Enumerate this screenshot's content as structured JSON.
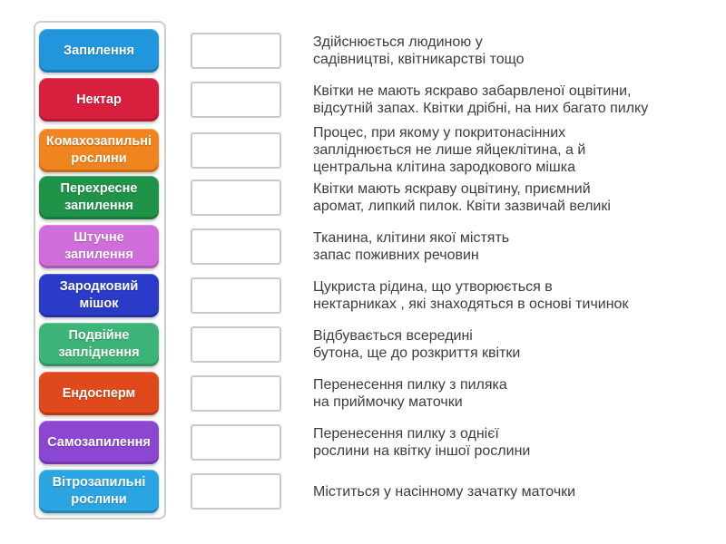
{
  "activity": {
    "type": "match-up",
    "language": "uk"
  },
  "colors": {
    "panel_border": "#cccccc",
    "dropbox_border": "#c9c9c9",
    "definition_text": "#3d3d3d",
    "tile_text": "#ffffff",
    "background": "#ffffff"
  },
  "rows": [
    {
      "term": "Запилення",
      "color": "#2196dd",
      "definition": "Здійснюється людиною у\nсадівництві, квітникарстві тощо"
    },
    {
      "term": "Нектар",
      "color": "#d8203e",
      "definition": "Квітки не мають яскраво забарвленої оцвітини,\nвідсутній запах. Квітки дрібні, на них багато пилку"
    },
    {
      "term": "Комахозапильні рослини",
      "color": "#f0841f",
      "definition": "Процес, при якому у покритонасінних\nзапліднюється не лише яйцеклітина, а й\nцентральна клітина зародкового мішка"
    },
    {
      "term": "Перехресне запилення",
      "color": "#1f9347",
      "definition": "Квітки мають яскраву оцвітину, приємний\nаромат, липкий пилок. Квіти зазвичай великі"
    },
    {
      "term": "Штучне запилення",
      "color": "#cf6edb",
      "definition": "Тканина, клітини якої містять\nзапас поживних речовин"
    },
    {
      "term": "Зародковий мішок",
      "color": "#2b3bc9",
      "definition": "Цукриста рідина, що утворюється в\nнектарниках , які знаходяться в основі тичинок"
    },
    {
      "term": "Подвійне запліднення",
      "color": "#3cb478",
      "definition": "Відбувається всередині\nбутона, ще до розкриття квітки"
    },
    {
      "term": "Ендосперм",
      "color": "#e0491c",
      "definition": "Перенесення пилку з пиляка\nна приймочку маточки"
    },
    {
      "term": "Самозапилення",
      "color": "#8b46d2",
      "definition": "Перенесення пилку з однієї\nрослини на квітку іншої рослини"
    },
    {
      "term": "Вітрозапильні рослини",
      "color": "#2aa5e2",
      "definition": "Міститься у насінному зачатку маточки"
    }
  ]
}
